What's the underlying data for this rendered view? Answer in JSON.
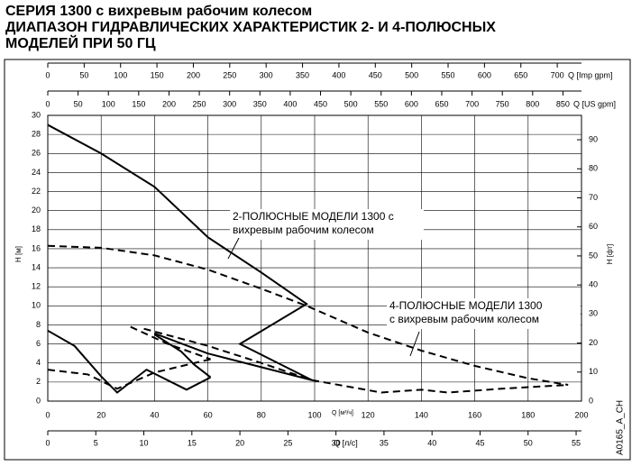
{
  "chart_data": {
    "type": "line",
    "title_lines": [
      "СЕРИЯ 1300 с вихревым рабочим колесом",
      "ДИАПАЗОН ГИДРАВЛИЧЕСКИХ ХАРАКТЕРИСТИК 2- И 4-ПОЛЮСНЫХ",
      "МОДЕЛЕЙ ПРИ 50 ГЦ"
    ],
    "xlabel": "Q [м³/ч]",
    "xlim": [
      0,
      200
    ],
    "xticks": [
      0,
      20,
      40,
      60,
      80,
      100,
      120,
      140,
      160,
      180,
      200
    ],
    "ylabel": "H [м]",
    "ylim": [
      0,
      30
    ],
    "yticks": [
      0,
      2,
      4,
      6,
      8,
      10,
      12,
      14,
      16,
      18,
      20,
      22,
      24,
      26,
      28,
      30
    ],
    "y2label": "H [фт]",
    "y2lim": [
      0,
      98.4
    ],
    "y2ticks": [
      0,
      10,
      20,
      30,
      40,
      50,
      60,
      70,
      80,
      90
    ],
    "x_imp_label": "Q [Imp gpm]",
    "x_imp_lim": [
      0,
      733.3
    ],
    "x_imp_ticks": [
      0,
      50,
      100,
      150,
      200,
      250,
      300,
      350,
      400,
      450,
      500,
      550,
      600,
      650,
      700
    ],
    "x_us_label": "Q [US gpm]",
    "x_us_lim": [
      0,
      880.6
    ],
    "x_us_ticks": [
      0,
      50,
      100,
      150,
      200,
      250,
      300,
      350,
      400,
      450,
      500,
      550,
      600,
      650,
      700,
      750,
      800,
      850
    ],
    "x_ls_label": "Q [л/с]",
    "x_ls_lim": [
      0,
      55.56
    ],
    "x_ls_ticks": [
      0,
      5,
      10,
      15,
      20,
      25,
      30,
      35,
      40,
      45,
      50,
      55
    ],
    "grid": true,
    "series": [
      {
        "color": "#000000",
        "dashed": false,
        "x": [
          0,
          20,
          40,
          60,
          80,
          97,
          72,
          99
        ],
        "values": [
          29,
          26,
          22.5,
          17.2,
          13.5,
          10.2,
          6,
          2.2
        ]
      },
      {
        "color": "#000000",
        "dashed": false,
        "x": [
          40,
          60,
          99
        ],
        "values": [
          7.1,
          5,
          2.2
        ]
      },
      {
        "color": "#000000",
        "dashed": false,
        "x": [
          0,
          10,
          20,
          26,
          37,
          52,
          61
        ],
        "values": [
          7.4,
          5.8,
          2.6,
          0.9,
          3.3,
          1.2,
          2.5
        ]
      },
      {
        "color": "#000000",
        "dashed": false,
        "x": [
          40,
          50,
          55,
          61
        ],
        "values": [
          7,
          5.2,
          3.8,
          2.5
        ]
      },
      {
        "color": "#000000",
        "dashed": true,
        "x": [
          0,
          20,
          40,
          60,
          80,
          97,
          120,
          140,
          160,
          180,
          195
        ],
        "values": [
          16.3,
          16.1,
          15.3,
          13.8,
          11.8,
          10,
          7.2,
          5.3,
          3.7,
          2.4,
          1.7
        ]
      },
      {
        "color": "#000000",
        "dashed": true,
        "x": [
          0,
          15,
          26,
          40,
          61
        ],
        "values": [
          3.3,
          2.8,
          1.3,
          3,
          4.4
        ]
      },
      {
        "color": "#000000",
        "dashed": true,
        "x": [
          31,
          45,
          61
        ],
        "values": [
          7.8,
          6,
          4.4
        ]
      },
      {
        "color": "#000000",
        "dashed": true,
        "x": [
          36,
          60,
          80,
          99
        ],
        "values": [
          7.6,
          5.8,
          4,
          2.2
        ]
      },
      {
        "color": "#000000",
        "dashed": true,
        "x": [
          99,
          125,
          140,
          150,
          170,
          195
        ],
        "values": [
          2.2,
          0.9,
          1.2,
          0.9,
          1.3,
          1.7
        ]
      }
    ],
    "annotations": [
      [
        "2-ПОЛЮСНЫЕ МОДЕЛИ 1300 с",
        "вихревым рабочим колесом"
      ],
      [
        "4-ПОЛЮСНЫЕ МОДЕЛИ 1300",
        "с вихревым рабочим колесом"
      ]
    ],
    "code": "A0165_A_CH"
  }
}
